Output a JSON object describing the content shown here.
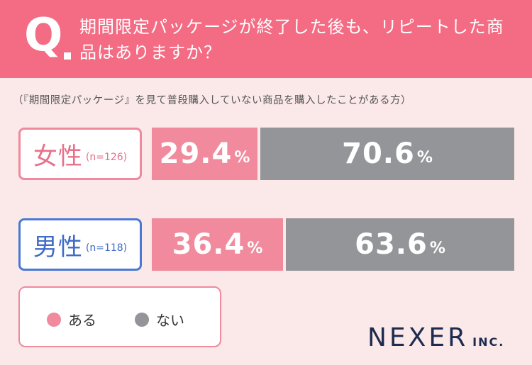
{
  "header": {
    "q_mark": "Q",
    "question": "期間限定パッケージが終了した後も、リピートした商品はありますか？"
  },
  "note": "（『期間限定パッケージ』を見て普段購入していない商品を購入したことがある方）",
  "colors": {
    "header_bg": "#f46b84",
    "aru": "#f08a9c",
    "nai": "#939598",
    "female_border": "#ef8a9d",
    "male_border": "#4a79d4"
  },
  "chart_data": {
    "type": "bar",
    "orientation": "horizontal-stacked-100",
    "categories": [
      "女性",
      "男性"
    ],
    "category_n": [
      "(n=126)",
      "(n=118)"
    ],
    "series": [
      {
        "name": "ある",
        "values": [
          29.4,
          36.4
        ]
      },
      {
        "name": "ない",
        "values": [
          70.6,
          63.6
        ]
      }
    ],
    "unit": "%"
  },
  "rows": [
    {
      "label": "女性",
      "n": "(n=126)",
      "aru": "29.4",
      "nai": "70.6"
    },
    {
      "label": "男性",
      "n": "(n=118)",
      "aru": "36.4",
      "nai": "63.6"
    }
  ],
  "pct_symbol": "%",
  "legend": [
    {
      "label": "ある"
    },
    {
      "label": "ない"
    }
  ],
  "logo": {
    "main": "NEXER",
    "suffix": "INC."
  }
}
